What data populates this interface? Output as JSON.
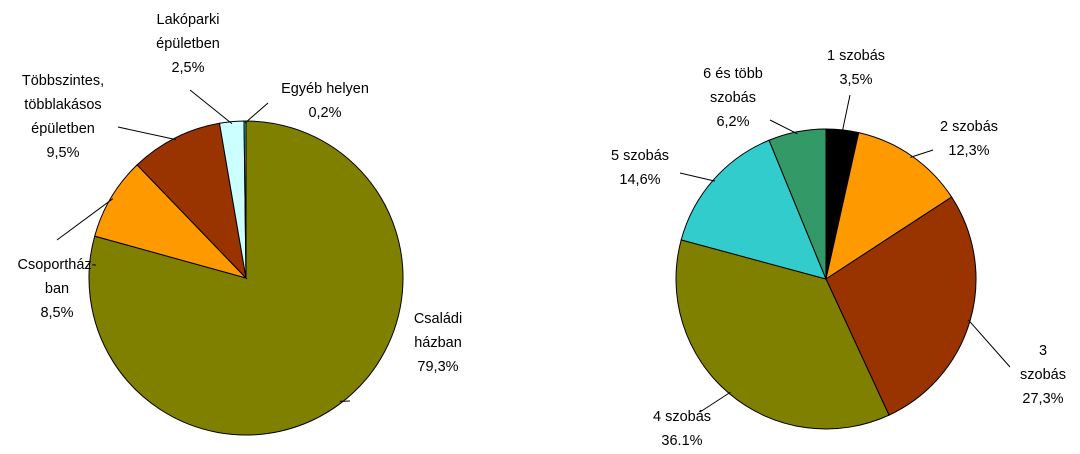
{
  "chart_data": [
    {
      "type": "pie",
      "categories": [
        "Családi\nházban",
        "Csoportház-\nban",
        "Többszintes,\ntöbblakásos\népületben",
        "Lakóparki\népületben",
        "Egyéb helyen"
      ],
      "values": [
        79.3,
        8.5,
        9.5,
        2.5,
        0.2
      ],
      "value_labels": [
        "79,3%",
        "8,5%",
        "9,5%",
        "2,5%",
        "0,2%"
      ],
      "colors": [
        "#808000",
        "#ff9900",
        "#993300",
        "#ccffff",
        "#33cccc"
      ]
    },
    {
      "type": "pie",
      "categories": [
        "1 szobás",
        "2 szobás",
        "3 szobás",
        "4 szobás",
        "5 szobás",
        "6 és több\nszobás"
      ],
      "values": [
        3.5,
        12.3,
        27.3,
        36.1,
        14.6,
        6.2
      ],
      "value_labels": [
        "3,5%",
        "12,3%",
        "27,3%",
        "36.1%",
        "14,6%",
        "6,2%"
      ],
      "colors": [
        "#000000",
        "#ff9900",
        "#993300",
        "#808000",
        "#33cccc",
        "#339966"
      ]
    }
  ]
}
